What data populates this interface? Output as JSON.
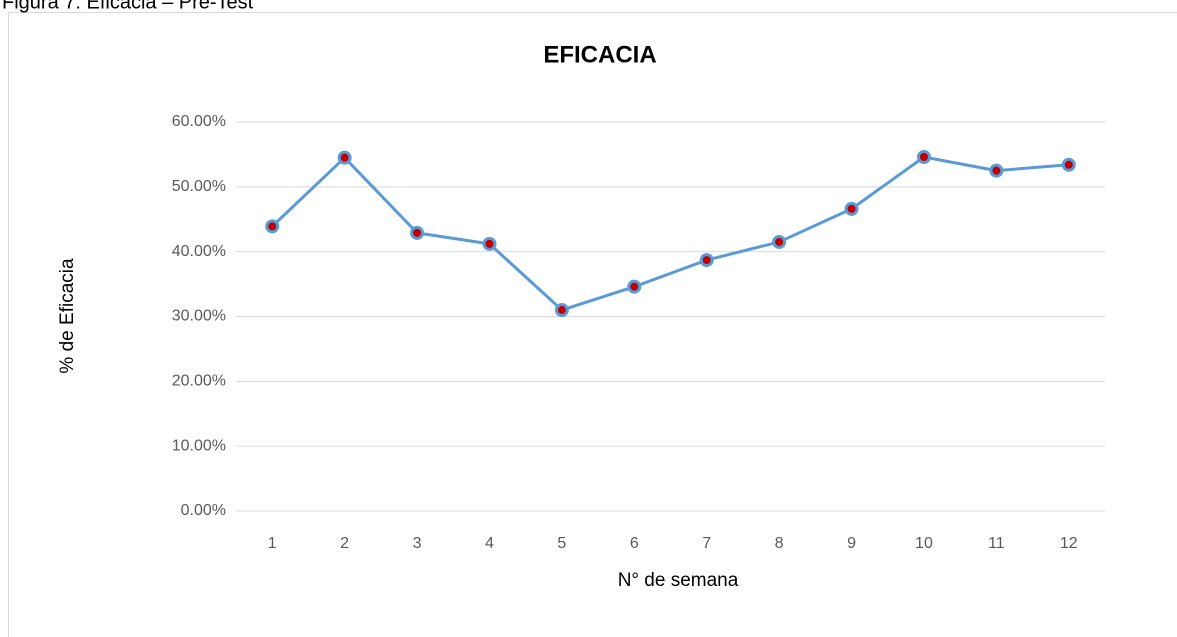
{
  "caption": "Figura 7: Eficacia – Pre-Test",
  "chart_data": {
    "type": "line",
    "title": "EFICACIA",
    "x_label": "N° de semana",
    "y_label": "% de Eficacia",
    "categories": [
      "1",
      "2",
      "3",
      "4",
      "5",
      "6",
      "7",
      "8",
      "9",
      "10",
      "11",
      "12"
    ],
    "series": [
      {
        "name": "Eficacia",
        "color": "#5b9bd5",
        "marker_color": "#c00000",
        "values": [
          43.9,
          54.5,
          42.9,
          41.2,
          31.0,
          34.6,
          38.7,
          41.5,
          46.6,
          54.6,
          52.5,
          53.4
        ]
      }
    ],
    "ylim": [
      0,
      60
    ],
    "yticks": [
      {
        "value": 0,
        "label": "0.00%"
      },
      {
        "value": 10,
        "label": "10.00%"
      },
      {
        "value": 20,
        "label": "20.00%"
      },
      {
        "value": 30,
        "label": "30.00%"
      },
      {
        "value": 40,
        "label": "40.00%"
      },
      {
        "value": 50,
        "label": "50.00%"
      },
      {
        "value": 60,
        "label": "60.00%"
      }
    ],
    "grid": true
  }
}
